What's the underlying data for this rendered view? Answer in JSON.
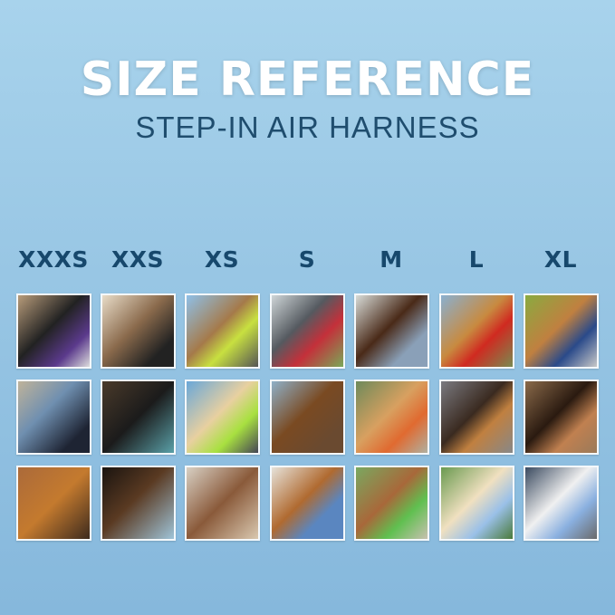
{
  "header": {
    "title": "SIZE REFERENCE",
    "subtitle": "STEP-IN AIR HARNESS"
  },
  "sizes": [
    "XXXS",
    "XXS",
    "XS",
    "S",
    "M",
    "L",
    "XL"
  ],
  "colors": {
    "title": "#ffffff",
    "subtitle": "#1f4d6e",
    "size_labels": "#17486c",
    "background": "#98c6e4"
  }
}
